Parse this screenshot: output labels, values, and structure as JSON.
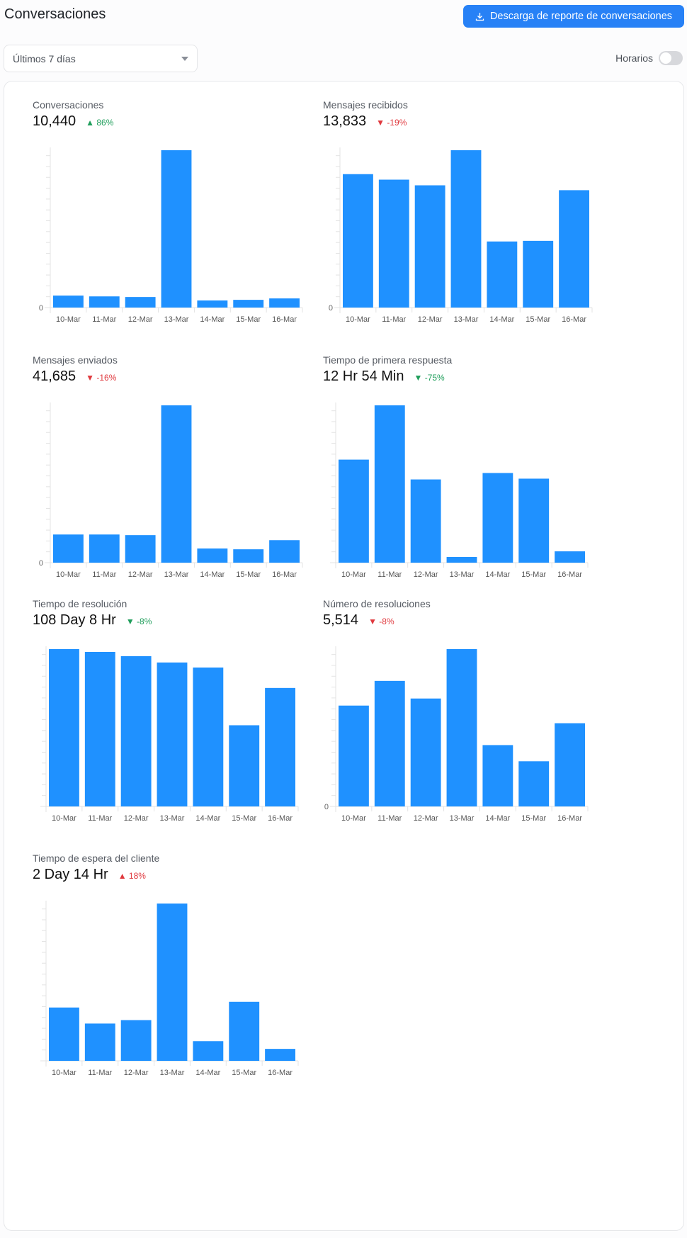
{
  "header": {
    "title": "Conversaciones",
    "download_label": "Descarga de reporte de conversaciones",
    "download_icon": "download-icon"
  },
  "filters": {
    "range_value": "Últimos 7 días",
    "hours_label": "Horarios",
    "hours_on": false
  },
  "colors": {
    "bar": "#1f91ff",
    "accent": "#2781f6",
    "positive": "#1f9e5b",
    "negative": "#e0393e"
  },
  "metrics": [
    {
      "title": "Conversaciones",
      "value": "10,440",
      "delta": "▲ 86%",
      "trend": "up"
    },
    {
      "title": "Mensajes recibidos",
      "value": "13,833",
      "delta": "▼ -19%",
      "trend": "down"
    },
    {
      "title": "Mensajes enviados",
      "value": "41,685",
      "delta": "▼ -16%",
      "trend": "down"
    },
    {
      "title": "Tiempo de primera respuesta",
      "value": "12 Hr 54 Min",
      "delta": "▼ -75%",
      "trend": "up"
    },
    {
      "title": "Tiempo de resolución",
      "value": "108 Day 8 Hr",
      "delta": "▼ -8%",
      "trend": "up"
    },
    {
      "title": "Número de resoluciones",
      "value": "5,514",
      "delta": "▼ -8%",
      "trend": "down"
    },
    {
      "title": "Tiempo de espera del cliente",
      "value": "2 Day 14 Hr",
      "delta": "▲ 18%",
      "trend": "down"
    }
  ],
  "chart_data": [
    {
      "type": "bar",
      "categories": [
        "10-Mar",
        "11-Mar",
        "12-Mar",
        "13-Mar",
        "14-Mar",
        "15-Mar",
        "16-Mar"
      ],
      "values": [
        7.6,
        7.1,
        6.7,
        100,
        4.5,
        4.9,
        5.8
      ],
      "y_tick_labels": [
        "0"
      ],
      "grid": false
    },
    {
      "type": "bar",
      "categories": [
        "10-Mar",
        "11-Mar",
        "12-Mar",
        "13-Mar",
        "14-Mar",
        "15-Mar",
        "16-Mar"
      ],
      "values": [
        84.8,
        81.3,
        77.7,
        100,
        42,
        42.4,
        74.6
      ],
      "y_tick_labels": [
        "0"
      ],
      "grid": false
    },
    {
      "type": "bar",
      "categories": [
        "10-Mar",
        "11-Mar",
        "12-Mar",
        "13-Mar",
        "14-Mar",
        "15-Mar",
        "16-Mar"
      ],
      "values": [
        17.9,
        17.9,
        17.5,
        100,
        9,
        8.5,
        14.3
      ],
      "y_tick_labels": [
        "0"
      ],
      "grid": false
    },
    {
      "type": "bar",
      "categories": [
        "10-Mar",
        "11-Mar",
        "12-Mar",
        "13-Mar",
        "14-Mar",
        "15-Mar",
        "16-Mar"
      ],
      "values": [
        65.5,
        100,
        52.9,
        3.6,
        57,
        53.4,
        7.2
      ],
      "y_tick_labels": [],
      "grid": false
    },
    {
      "type": "bar",
      "categories": [
        "10-Mar",
        "11-Mar",
        "12-Mar",
        "13-Mar",
        "14-Mar",
        "15-Mar",
        "16-Mar"
      ],
      "values": [
        100,
        98.2,
        95.5,
        91.5,
        88.3,
        51.6,
        75.3
      ],
      "y_tick_labels": [],
      "grid": false
    },
    {
      "type": "bar",
      "categories": [
        "10-Mar",
        "11-Mar",
        "12-Mar",
        "13-Mar",
        "14-Mar",
        "15-Mar",
        "16-Mar"
      ],
      "values": [
        64.1,
        79.8,
        68.6,
        100,
        39,
        28.7,
        52.9
      ],
      "y_tick_labels": [
        "0"
      ],
      "grid": false
    },
    {
      "type": "bar",
      "categories": [
        "10-Mar",
        "11-Mar",
        "12-Mar",
        "13-Mar",
        "14-Mar",
        "15-Mar",
        "16-Mar"
      ],
      "values": [
        33.9,
        23.7,
        25.9,
        100,
        12.5,
        37.5,
        7.6
      ],
      "y_tick_labels": [],
      "grid": false
    }
  ]
}
